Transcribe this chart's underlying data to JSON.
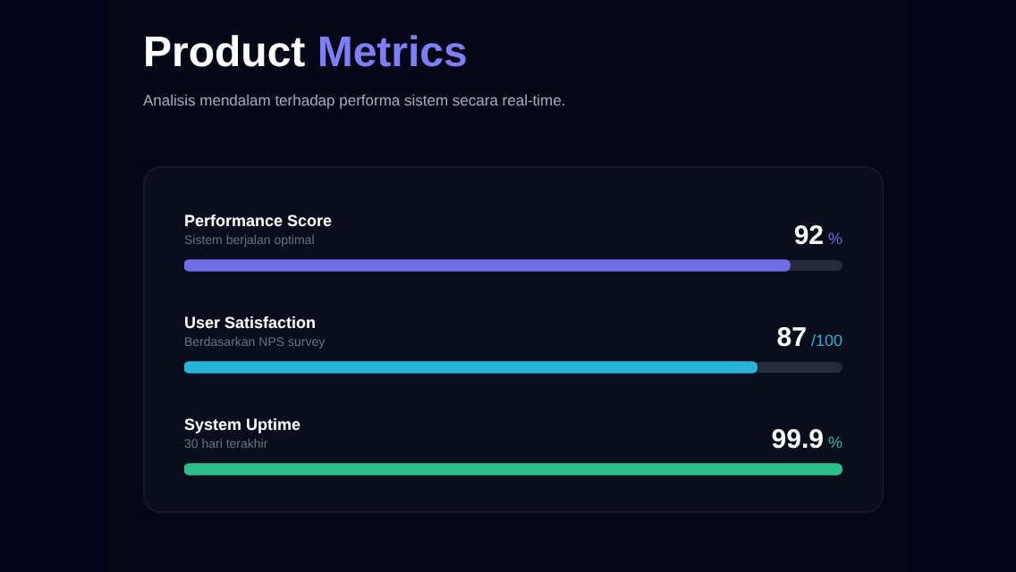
{
  "chart_data": {
    "type": "bar",
    "orientation": "horizontal",
    "title": "Product Metrics",
    "subtitle": "Analisis mendalam terhadap performa sistem secara real-time.",
    "categories": [
      "Performance Score",
      "User Satisfaction",
      "System Uptime"
    ],
    "values": [
      92,
      87,
      99.9
    ],
    "colors": [
      "#6e6ee6",
      "#27b4d6",
      "#2fbf8c"
    ],
    "value_labels": [
      "92 %",
      "87 /100",
      "99.9 %"
    ],
    "xlim": [
      0,
      100
    ],
    "tick_labels": false,
    "annotations": [
      {
        "text": "Sistem berjalan optimal",
        "y": "Performance Score"
      },
      {
        "text": "Berdasarkan NPS survey",
        "y": "User Satisfaction"
      },
      {
        "text": "30 hari terakhir",
        "y": "System Uptime"
      }
    ]
  }
}
